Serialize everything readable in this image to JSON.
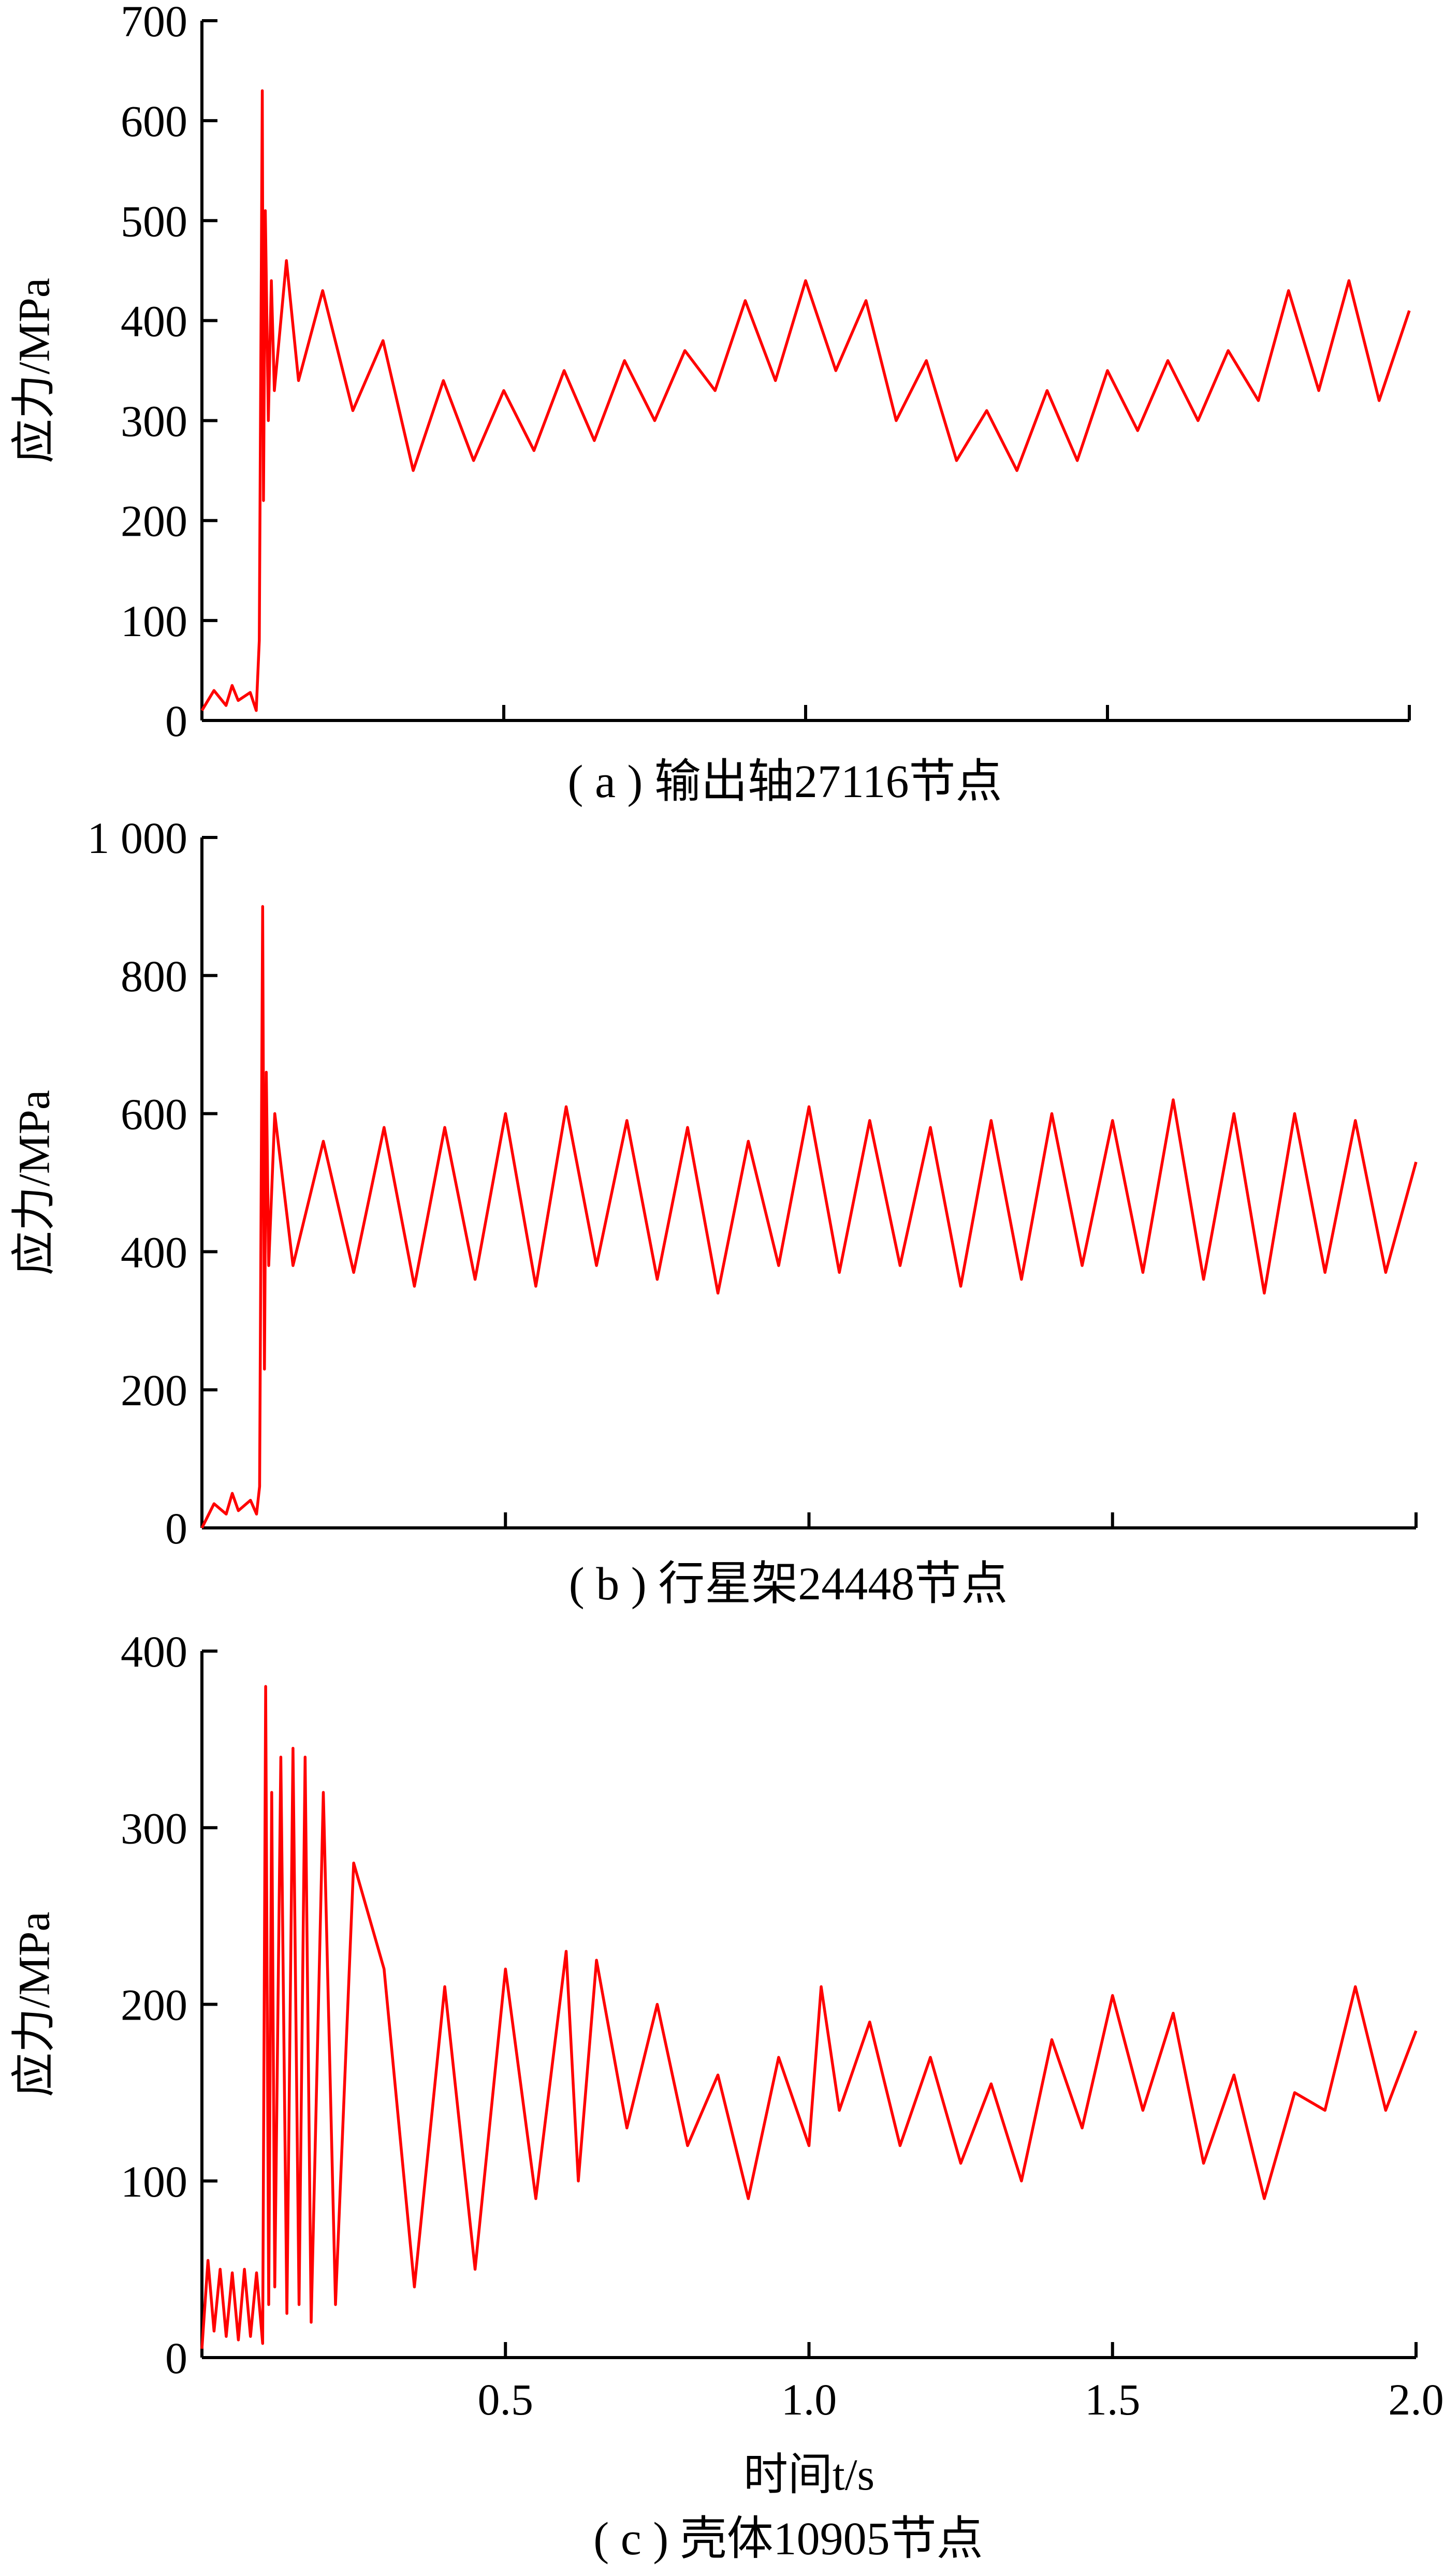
{
  "chart_data": [
    {
      "type": "line",
      "panel": "a",
      "caption": "( a ) 输出轴27116节点",
      "ylabel": "应力/MPa",
      "xlabel": "",
      "ylim": [
        0,
        700
      ],
      "xlim": [
        0,
        2.0
      ],
      "yticks": [
        0,
        100,
        200,
        300,
        400,
        500,
        600,
        700
      ],
      "ytick_labels": [
        "0",
        "100",
        "200",
        "300",
        "400",
        "500",
        "600",
        "700"
      ],
      "xticks": [
        0.5,
        1.0,
        1.5,
        2.0
      ],
      "xtick_labels": [
        "",
        "",
        "",
        ""
      ],
      "color": "#ff0000",
      "series": [
        {
          "x": [
            0.0,
            0.02,
            0.04,
            0.05,
            0.06,
            0.08,
            0.09,
            0.095,
            0.1,
            0.102,
            0.105,
            0.11,
            0.115,
            0.12,
            0.14,
            0.16,
            0.2,
            0.25,
            0.3,
            0.35,
            0.4,
            0.45,
            0.5,
            0.55,
            0.6,
            0.65,
            0.7,
            0.75,
            0.8,
            0.85,
            0.9,
            0.95,
            1.0,
            1.05,
            1.1,
            1.15,
            1.2,
            1.25,
            1.3,
            1.35,
            1.4,
            1.45,
            1.5,
            1.55,
            1.6,
            1.65,
            1.7,
            1.75,
            1.8,
            1.85,
            1.9,
            1.95,
            2.0
          ],
          "y": [
            10,
            30,
            15,
            35,
            20,
            28,
            10,
            80,
            630,
            220,
            510,
            300,
            440,
            330,
            460,
            340,
            430,
            310,
            380,
            250,
            340,
            260,
            330,
            270,
            350,
            280,
            360,
            300,
            370,
            330,
            420,
            340,
            440,
            350,
            420,
            300,
            360,
            260,
            310,
            250,
            330,
            260,
            350,
            290,
            360,
            300,
            370,
            320,
            430,
            330,
            440,
            320,
            410
          ]
        }
      ]
    },
    {
      "type": "line",
      "panel": "b",
      "caption": "( b ) 行星架24448节点",
      "ylabel": "应力/MPa",
      "xlabel": "",
      "ylim": [
        0,
        1000
      ],
      "xlim": [
        0,
        2.0
      ],
      "yticks": [
        0,
        200,
        400,
        600,
        800,
        1000
      ],
      "ytick_labels": [
        "0",
        "200",
        "400",
        "600",
        "800",
        "1 000"
      ],
      "xticks": [
        0.5,
        1.0,
        1.5,
        2.0
      ],
      "xtick_labels": [
        "",
        "",
        "",
        ""
      ],
      "color": "#ff0000",
      "series": [
        {
          "x": [
            0.0,
            0.02,
            0.04,
            0.05,
            0.06,
            0.08,
            0.09,
            0.095,
            0.1,
            0.103,
            0.106,
            0.11,
            0.12,
            0.15,
            0.2,
            0.25,
            0.3,
            0.35,
            0.4,
            0.45,
            0.5,
            0.55,
            0.6,
            0.65,
            0.7,
            0.75,
            0.8,
            0.85,
            0.9,
            0.95,
            1.0,
            1.05,
            1.1,
            1.15,
            1.2,
            1.25,
            1.3,
            1.35,
            1.4,
            1.45,
            1.5,
            1.55,
            1.6,
            1.65,
            1.7,
            1.75,
            1.8,
            1.85,
            1.9,
            1.95,
            2.0
          ],
          "y": [
            0,
            35,
            20,
            50,
            25,
            40,
            20,
            60,
            900,
            230,
            660,
            380,
            600,
            380,
            560,
            370,
            580,
            350,
            580,
            360,
            600,
            350,
            610,
            380,
            590,
            360,
            580,
            340,
            560,
            380,
            610,
            370,
            590,
            380,
            580,
            350,
            590,
            360,
            600,
            380,
            590,
            370,
            620,
            360,
            600,
            340,
            600,
            370,
            590,
            370,
            530
          ]
        }
      ]
    },
    {
      "type": "line",
      "panel": "c",
      "caption": "( c ) 壳体10905节点",
      "ylabel": "应力/MPa",
      "xlabel": "时间t/s",
      "ylim": [
        0,
        400
      ],
      "xlim": [
        0,
        2.0
      ],
      "yticks": [
        0,
        100,
        200,
        300,
        400
      ],
      "ytick_labels": [
        "0",
        "100",
        "200",
        "300",
        "400"
      ],
      "xticks": [
        0.5,
        1.0,
        1.5,
        2.0
      ],
      "xtick_labels": [
        "0.5",
        "1.0",
        "1.5",
        "2.0"
      ],
      "color": "#ff0000",
      "series": [
        {
          "x": [
            0.0,
            0.01,
            0.02,
            0.03,
            0.04,
            0.05,
            0.06,
            0.07,
            0.08,
            0.09,
            0.1,
            0.105,
            0.11,
            0.115,
            0.12,
            0.13,
            0.14,
            0.15,
            0.16,
            0.17,
            0.18,
            0.2,
            0.22,
            0.25,
            0.3,
            0.35,
            0.4,
            0.45,
            0.5,
            0.55,
            0.6,
            0.62,
            0.65,
            0.7,
            0.75,
            0.8,
            0.85,
            0.9,
            0.95,
            1.0,
            1.02,
            1.05,
            1.1,
            1.15,
            1.2,
            1.25,
            1.3,
            1.35,
            1.4,
            1.45,
            1.5,
            1.55,
            1.6,
            1.65,
            1.7,
            1.75,
            1.8,
            1.85,
            1.9,
            1.95,
            2.0
          ],
          "y": [
            5,
            55,
            15,
            50,
            12,
            48,
            10,
            50,
            12,
            48,
            8,
            380,
            30,
            320,
            40,
            340,
            25,
            345,
            30,
            340,
            20,
            320,
            30,
            280,
            220,
            40,
            210,
            50,
            220,
            90,
            230,
            100,
            225,
            130,
            200,
            120,
            160,
            90,
            170,
            120,
            210,
            140,
            190,
            120,
            170,
            110,
            155,
            100,
            180,
            130,
            205,
            140,
            195,
            110,
            160,
            90,
            150,
            140,
            210,
            140,
            185
          ]
        }
      ]
    }
  ]
}
